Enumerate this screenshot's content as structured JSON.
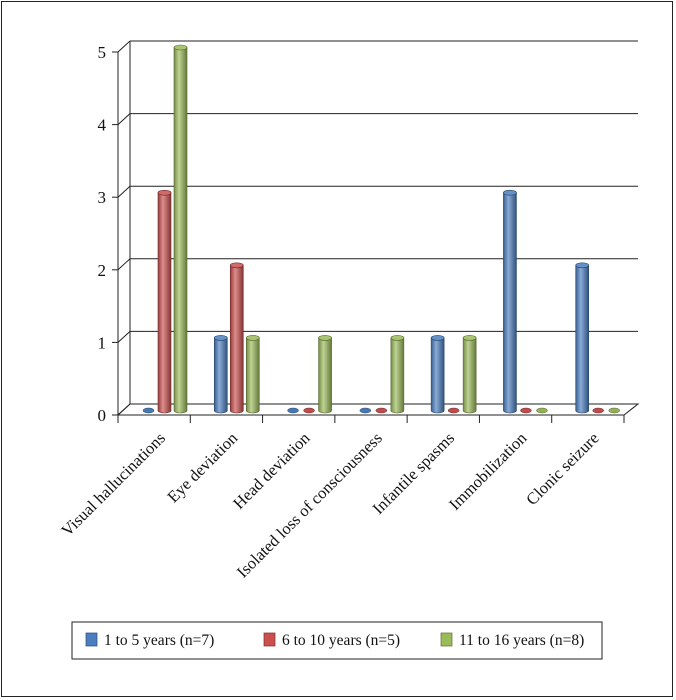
{
  "chart_data": {
    "type": "bar",
    "title": "",
    "xlabel": "",
    "ylabel": "",
    "ylim": [
      0,
      5
    ],
    "yticks": [
      0,
      1,
      2,
      3,
      4,
      5
    ],
    "grid": true,
    "legend_position": "bottom",
    "categories": [
      "Visual hallucinations",
      "Eye deviation",
      "Head deviation",
      "Isolated loss of consciousness",
      "Infantile spasms",
      "Immobilization",
      "Clonic seizure"
    ],
    "series": [
      {
        "name": "1 to 5 years (n=7)",
        "color": "#4a7ec0",
        "values": [
          0,
          1,
          0,
          0,
          1,
          3,
          2
        ]
      },
      {
        "name": "6 to 10 years (n=5)",
        "color": "#c9504e",
        "values": [
          3,
          2,
          0,
          0,
          0,
          0,
          0
        ]
      },
      {
        "name": "11 to 16 years (n=8)",
        "color": "#9bbb59",
        "values": [
          5,
          1,
          1,
          1,
          1,
          0,
          0
        ]
      }
    ]
  }
}
